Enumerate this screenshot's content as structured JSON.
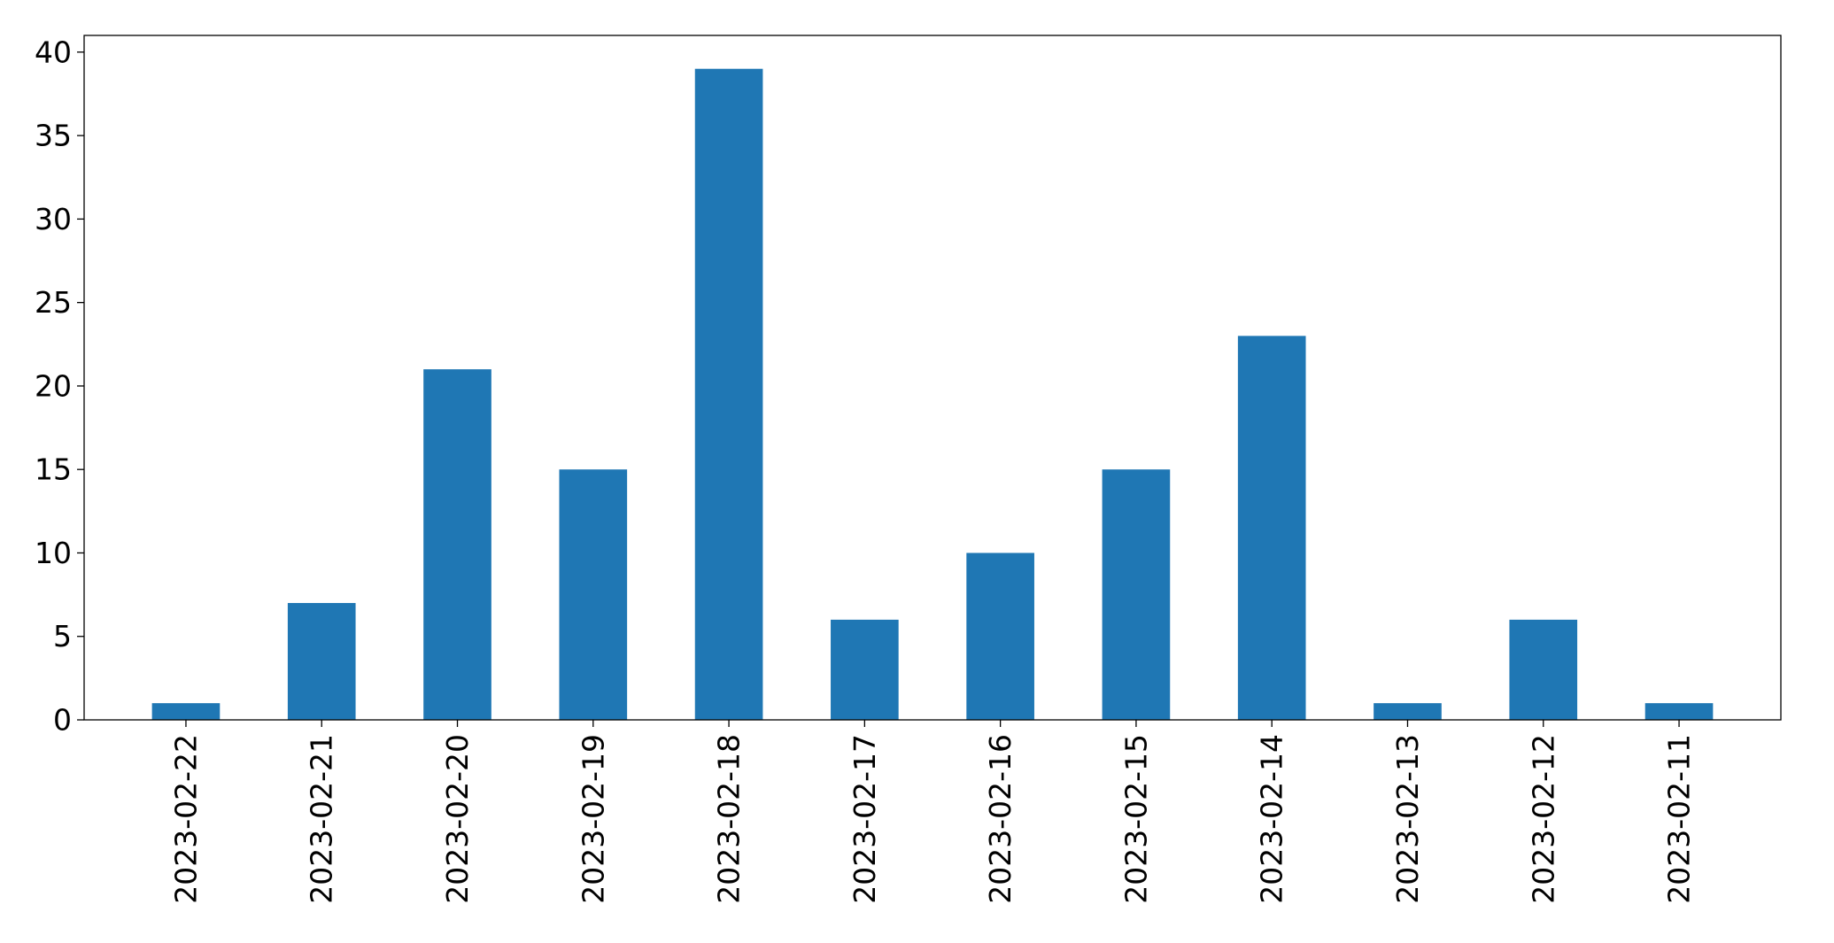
{
  "chart_data": {
    "type": "bar",
    "categories": [
      "2023-02-22",
      "2023-02-21",
      "2023-02-20",
      "2023-02-19",
      "2023-02-18",
      "2023-02-17",
      "2023-02-16",
      "2023-02-15",
      "2023-02-14",
      "2023-02-13",
      "2023-02-12",
      "2023-02-11"
    ],
    "values": [
      1,
      7,
      21,
      15,
      39,
      6,
      10,
      15,
      23,
      1,
      6,
      1
    ],
    "title": "",
    "xlabel": "",
    "ylabel": "",
    "ylim": [
      0,
      41
    ],
    "yticks": [
      0,
      5,
      10,
      15,
      20,
      25,
      30,
      35,
      40
    ],
    "bar_color": "#1f77b4",
    "grid": false,
    "legend": "none"
  }
}
